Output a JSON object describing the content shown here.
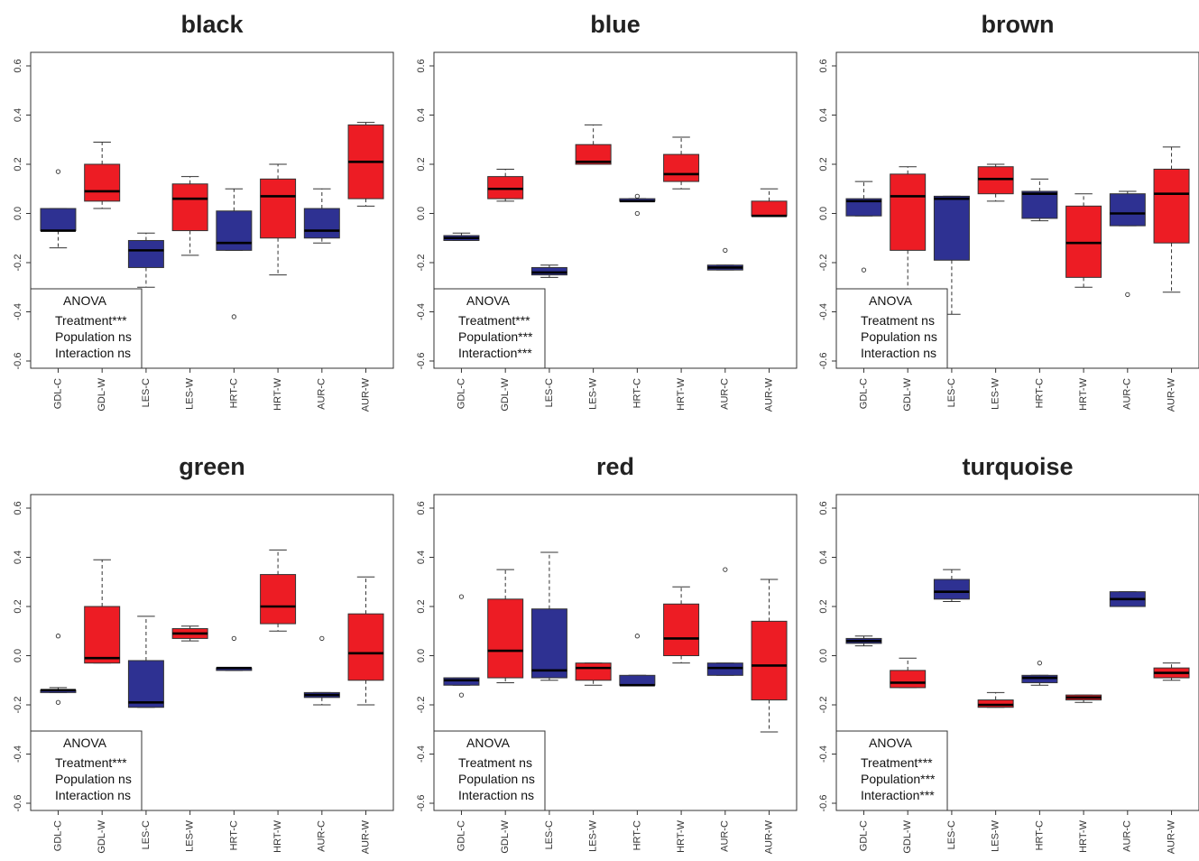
{
  "colors": {
    "control": "#2e3192",
    "warming": "#ed1c24"
  },
  "chart_data": [
    {
      "type": "box",
      "title": "black",
      "ylim": [
        -0.65,
        0.65
      ],
      "y_ticks": [
        "-0.6",
        "-0.4",
        "-0.2",
        "0.0",
        "0.2",
        "0.4",
        "0.6"
      ],
      "categories": [
        "GDL-C",
        "GDL-W",
        "LES-C",
        "LES-W",
        "HRT-C",
        "HRT-W",
        "AUR-C",
        "AUR-W"
      ],
      "boxes": [
        {
          "min": -0.14,
          "q1": -0.07,
          "median": -0.07,
          "q3": 0.02,
          "max": 0.02,
          "outliers": [
            0.17
          ]
        },
        {
          "min": 0.02,
          "q1": 0.05,
          "median": 0.09,
          "q3": 0.2,
          "max": 0.29,
          "outliers": []
        },
        {
          "min": -0.3,
          "q1": -0.22,
          "median": -0.15,
          "q3": -0.11,
          "max": -0.08,
          "outliers": []
        },
        {
          "min": -0.17,
          "q1": -0.07,
          "median": 0.06,
          "q3": 0.12,
          "max": 0.15,
          "outliers": []
        },
        {
          "min": -0.15,
          "q1": -0.15,
          "median": -0.12,
          "q3": 0.01,
          "max": 0.1,
          "outliers": [
            -0.42
          ]
        },
        {
          "min": -0.25,
          "q1": -0.1,
          "median": 0.07,
          "q3": 0.14,
          "max": 0.2,
          "outliers": []
        },
        {
          "min": -0.12,
          "q1": -0.1,
          "median": -0.07,
          "q3": 0.02,
          "max": 0.1,
          "outliers": []
        },
        {
          "min": 0.03,
          "q1": 0.06,
          "median": 0.21,
          "q3": 0.36,
          "max": 0.37,
          "outliers": []
        }
      ],
      "anova": {
        "title": "ANOVA",
        "lines": [
          "Treatment***",
          "Population ns",
          "Interaction ns"
        ]
      }
    },
    {
      "type": "box",
      "title": "blue",
      "ylim": [
        -0.65,
        0.65
      ],
      "y_ticks": [
        "-0.6",
        "-0.4",
        "-0.2",
        "0.0",
        "0.2",
        "0.4",
        "0.6"
      ],
      "categories": [
        "GDL-C",
        "GDL-W",
        "LES-C",
        "LES-W",
        "HRT-C",
        "HRT-W",
        "AUR-C",
        "AUR-W"
      ],
      "boxes": [
        {
          "min": -0.11,
          "q1": -0.11,
          "median": -0.1,
          "q3": -0.09,
          "max": -0.08,
          "outliers": []
        },
        {
          "min": 0.05,
          "q1": 0.06,
          "median": 0.1,
          "q3": 0.15,
          "max": 0.18,
          "outliers": []
        },
        {
          "min": -0.26,
          "q1": -0.25,
          "median": -0.24,
          "q3": -0.22,
          "max": -0.21,
          "outliers": []
        },
        {
          "min": 0.2,
          "q1": 0.2,
          "median": 0.21,
          "q3": 0.28,
          "max": 0.36,
          "outliers": []
        },
        {
          "min": 0.05,
          "q1": 0.05,
          "median": 0.05,
          "q3": 0.06,
          "max": 0.06,
          "outliers": [
            0.07,
            0.0
          ]
        },
        {
          "min": 0.1,
          "q1": 0.13,
          "median": 0.16,
          "q3": 0.24,
          "max": 0.31,
          "outliers": []
        },
        {
          "min": -0.23,
          "q1": -0.23,
          "median": -0.22,
          "q3": -0.21,
          "max": -0.21,
          "outliers": [
            -0.15
          ]
        },
        {
          "min": -0.01,
          "q1": -0.01,
          "median": -0.01,
          "q3": 0.05,
          "max": 0.1,
          "outliers": []
        }
      ],
      "anova": {
        "title": "ANOVA",
        "lines": [
          "Treatment***",
          "Population***",
          "Interaction***"
        ]
      }
    },
    {
      "type": "box",
      "title": "brown",
      "ylim": [
        -0.65,
        0.65
      ],
      "y_ticks": [
        "-0.6",
        "-0.4",
        "-0.2",
        "0.0",
        "0.2",
        "0.4",
        "0.6"
      ],
      "categories": [
        "GDL-C",
        "GDL-W",
        "LES-C",
        "LES-W",
        "HRT-C",
        "HRT-W",
        "AUR-C",
        "AUR-W"
      ],
      "boxes": [
        {
          "min": -0.01,
          "q1": -0.01,
          "median": 0.05,
          "q3": 0.06,
          "max": 0.13,
          "outliers": [
            -0.23
          ]
        },
        {
          "min": -0.31,
          "q1": -0.15,
          "median": 0.07,
          "q3": 0.16,
          "max": 0.19,
          "outliers": []
        },
        {
          "min": -0.41,
          "q1": -0.19,
          "median": 0.06,
          "q3": 0.07,
          "max": 0.07,
          "outliers": []
        },
        {
          "min": 0.05,
          "q1": 0.08,
          "median": 0.14,
          "q3": 0.19,
          "max": 0.2,
          "outliers": []
        },
        {
          "min": -0.03,
          "q1": -0.02,
          "median": 0.08,
          "q3": 0.09,
          "max": 0.14,
          "outliers": []
        },
        {
          "min": -0.3,
          "q1": -0.26,
          "median": -0.12,
          "q3": 0.03,
          "max": 0.08,
          "outliers": []
        },
        {
          "min": -0.05,
          "q1": -0.05,
          "median": 0.0,
          "q3": 0.08,
          "max": 0.09,
          "outliers": [
            -0.33
          ]
        },
        {
          "min": -0.32,
          "q1": -0.12,
          "median": 0.08,
          "q3": 0.18,
          "max": 0.27,
          "outliers": []
        }
      ],
      "anova": {
        "title": "ANOVA",
        "lines": [
          "Treatment ns",
          "Population ns",
          "Interaction ns"
        ]
      }
    },
    {
      "type": "box",
      "title": "green",
      "ylim": [
        -0.65,
        0.65
      ],
      "y_ticks": [
        "-0.6",
        "-0.4",
        "-0.2",
        "0.0",
        "0.2",
        "0.4",
        "0.6"
      ],
      "categories": [
        "GDL-C",
        "GDL-W",
        "LES-C",
        "LES-W",
        "HRT-C",
        "HRT-W",
        "AUR-C",
        "AUR-W"
      ],
      "boxes": [
        {
          "min": -0.15,
          "q1": -0.15,
          "median": -0.14,
          "q3": -0.14,
          "max": -0.13,
          "outliers": [
            0.08,
            -0.19
          ]
        },
        {
          "min": -0.03,
          "q1": -0.03,
          "median": -0.01,
          "q3": 0.2,
          "max": 0.39,
          "outliers": []
        },
        {
          "min": -0.21,
          "q1": -0.21,
          "median": -0.19,
          "q3": -0.02,
          "max": 0.16,
          "outliers": []
        },
        {
          "min": 0.06,
          "q1": 0.07,
          "median": 0.09,
          "q3": 0.11,
          "max": 0.12,
          "outliers": []
        },
        {
          "min": -0.06,
          "q1": -0.06,
          "median": -0.05,
          "q3": -0.05,
          "max": -0.05,
          "outliers": [
            0.07
          ]
        },
        {
          "min": 0.1,
          "q1": 0.13,
          "median": 0.2,
          "q3": 0.33,
          "max": 0.43,
          "outliers": []
        },
        {
          "min": -0.2,
          "q1": -0.17,
          "median": -0.16,
          "q3": -0.15,
          "max": -0.15,
          "outliers": [
            0.07
          ]
        },
        {
          "min": -0.2,
          "q1": -0.1,
          "median": 0.01,
          "q3": 0.17,
          "max": 0.32,
          "outliers": []
        }
      ],
      "anova": {
        "title": "ANOVA",
        "lines": [
          "Treatment***",
          "Population ns",
          "Interaction ns"
        ]
      }
    },
    {
      "type": "box",
      "title": "red",
      "ylim": [
        -0.65,
        0.65
      ],
      "y_ticks": [
        "-0.6",
        "-0.4",
        "-0.2",
        "0.0",
        "0.2",
        "0.4",
        "0.6"
      ],
      "categories": [
        "GDL-C",
        "GDL-W",
        "LES-C",
        "LES-W",
        "HRT-C",
        "HRT-W",
        "AUR-C",
        "AUR-W"
      ],
      "boxes": [
        {
          "min": -0.12,
          "q1": -0.12,
          "median": -0.1,
          "q3": -0.09,
          "max": -0.09,
          "outliers": [
            0.24,
            -0.16
          ]
        },
        {
          "min": -0.11,
          "q1": -0.09,
          "median": 0.02,
          "q3": 0.23,
          "max": 0.35,
          "outliers": []
        },
        {
          "min": -0.1,
          "q1": -0.09,
          "median": -0.06,
          "q3": 0.19,
          "max": 0.42,
          "outliers": []
        },
        {
          "min": -0.12,
          "q1": -0.1,
          "median": -0.05,
          "q3": -0.03,
          "max": -0.03,
          "outliers": []
        },
        {
          "min": -0.12,
          "q1": -0.12,
          "median": -0.12,
          "q3": -0.08,
          "max": -0.08,
          "outliers": [
            0.08
          ]
        },
        {
          "min": -0.03,
          "q1": 0.0,
          "median": 0.07,
          "q3": 0.21,
          "max": 0.28,
          "outliers": []
        },
        {
          "min": -0.08,
          "q1": -0.08,
          "median": -0.05,
          "q3": -0.03,
          "max": -0.03,
          "outliers": [
            0.35
          ]
        },
        {
          "min": -0.31,
          "q1": -0.18,
          "median": -0.04,
          "q3": 0.14,
          "max": 0.31,
          "outliers": []
        }
      ],
      "anova": {
        "title": "ANOVA",
        "lines": [
          "Treatment ns",
          "Population ns",
          "Interaction ns"
        ]
      }
    },
    {
      "type": "box",
      "title": "turquoise",
      "ylim": [
        -0.65,
        0.65
      ],
      "y_ticks": [
        "-0.6",
        "-0.4",
        "-0.2",
        "0.0",
        "0.2",
        "0.4",
        "0.6"
      ],
      "categories": [
        "GDL-C",
        "GDL-W",
        "LES-C",
        "LES-W",
        "HRT-C",
        "HRT-W",
        "AUR-C",
        "AUR-W"
      ],
      "boxes": [
        {
          "min": 0.04,
          "q1": 0.05,
          "median": 0.06,
          "q3": 0.07,
          "max": 0.08,
          "outliers": []
        },
        {
          "min": -0.13,
          "q1": -0.13,
          "median": -0.11,
          "q3": -0.06,
          "max": -0.01,
          "outliers": []
        },
        {
          "min": 0.22,
          "q1": 0.23,
          "median": 0.26,
          "q3": 0.31,
          "max": 0.35,
          "outliers": []
        },
        {
          "min": -0.21,
          "q1": -0.21,
          "median": -0.2,
          "q3": -0.18,
          "max": -0.15,
          "outliers": []
        },
        {
          "min": -0.12,
          "q1": -0.11,
          "median": -0.09,
          "q3": -0.08,
          "max": -0.08,
          "outliers": [
            -0.03
          ]
        },
        {
          "min": -0.19,
          "q1": -0.18,
          "median": -0.17,
          "q3": -0.16,
          "max": -0.16,
          "outliers": []
        },
        {
          "min": 0.2,
          "q1": 0.2,
          "median": 0.23,
          "q3": 0.26,
          "max": 0.26,
          "outliers": []
        },
        {
          "min": -0.1,
          "q1": -0.09,
          "median": -0.07,
          "q3": -0.05,
          "max": -0.03,
          "outliers": []
        }
      ],
      "anova": {
        "title": "ANOVA",
        "lines": [
          "Treatment***",
          "Population***",
          "Interaction***"
        ]
      }
    }
  ]
}
